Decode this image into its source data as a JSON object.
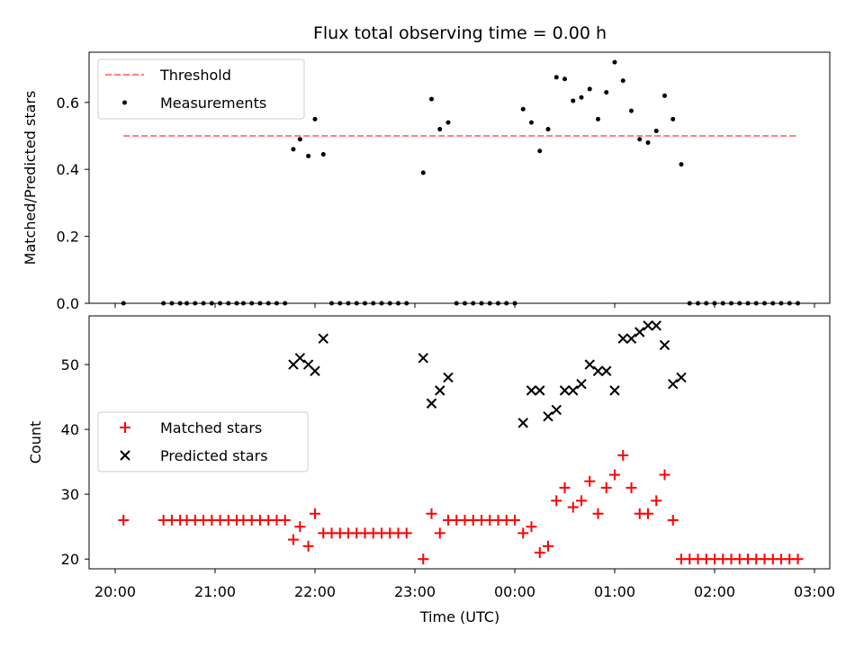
{
  "title": "Flux total observing time = 0.00 h",
  "colors": {
    "threshold": "#ff7f7f",
    "measurement": "#000000",
    "matched": "#ff0000",
    "predicted": "#000000"
  },
  "chart_data": [
    {
      "type": "scatter",
      "ylabel": "Matched/Predicted stars",
      "ylim": [
        0,
        0.75
      ],
      "y_ticks": [
        "0.0",
        "0.2",
        "0.4",
        "0.6"
      ],
      "legend": {
        "placement": "upper-left",
        "entries": [
          "Threshold",
          "Measurements"
        ]
      },
      "threshold": {
        "name": "Threshold",
        "value": 0.5,
        "x_start": "20:05",
        "x_end": "02:50"
      },
      "series": [
        {
          "name": "Measurements",
          "points": [
            [
              "20:05",
              0
            ],
            [
              "20:29",
              0
            ],
            [
              "20:34",
              0
            ],
            [
              "20:39",
              0
            ],
            [
              "20:43",
              0
            ],
            [
              "20:48",
              0
            ],
            [
              "20:53",
              0
            ],
            [
              "20:58",
              0
            ],
            [
              "21:03",
              0
            ],
            [
              "21:08",
              0
            ],
            [
              "21:13",
              0
            ],
            [
              "21:17",
              0
            ],
            [
              "21:22",
              0
            ],
            [
              "21:27",
              0
            ],
            [
              "21:32",
              0
            ],
            [
              "21:37",
              0
            ],
            [
              "21:42",
              0
            ],
            [
              "21:47",
              0.46
            ],
            [
              "21:51",
              0.49
            ],
            [
              "21:56",
              0.44
            ],
            [
              "22:00",
              0.55
            ],
            [
              "22:05",
              0.445
            ],
            [
              "22:10",
              0
            ],
            [
              "22:15",
              0
            ],
            [
              "22:20",
              0
            ],
            [
              "22:25",
              0
            ],
            [
              "22:30",
              0
            ],
            [
              "22:35",
              0
            ],
            [
              "22:40",
              0
            ],
            [
              "22:45",
              0
            ],
            [
              "22:50",
              0
            ],
            [
              "22:55",
              0
            ],
            [
              "23:05",
              0.39
            ],
            [
              "23:10",
              0.61
            ],
            [
              "23:15",
              0.52
            ],
            [
              "23:20",
              0.54
            ],
            [
              "23:25",
              0
            ],
            [
              "23:30",
              0
            ],
            [
              "23:35",
              0
            ],
            [
              "23:40",
              0
            ],
            [
              "23:45",
              0
            ],
            [
              "23:50",
              0
            ],
            [
              "23:55",
              0
            ],
            [
              "00:00",
              0
            ],
            [
              "00:05",
              0.58
            ],
            [
              "00:10",
              0.54
            ],
            [
              "00:15",
              0.455
            ],
            [
              "00:20",
              0.52
            ],
            [
              "00:25",
              0.675
            ],
            [
              "00:30",
              0.67
            ],
            [
              "00:35",
              0.605
            ],
            [
              "00:40",
              0.615
            ],
            [
              "00:45",
              0.64
            ],
            [
              "00:50",
              0.55
            ],
            [
              "00:55",
              0.63
            ],
            [
              "01:00",
              0.72
            ],
            [
              "01:05",
              0.665
            ],
            [
              "01:10",
              0.575
            ],
            [
              "01:15",
              0.49
            ],
            [
              "01:20",
              0.48
            ],
            [
              "01:25",
              0.515
            ],
            [
              "01:30",
              0.62
            ],
            [
              "01:35",
              0.55
            ],
            [
              "01:40",
              0.415
            ],
            [
              "01:45",
              0
            ],
            [
              "01:50",
              0
            ],
            [
              "01:55",
              0
            ],
            [
              "02:00",
              0
            ],
            [
              "02:05",
              0
            ],
            [
              "02:10",
              0
            ],
            [
              "02:15",
              0
            ],
            [
              "02:20",
              0
            ],
            [
              "02:25",
              0
            ],
            [
              "02:30",
              0
            ],
            [
              "02:35",
              0
            ],
            [
              "02:40",
              0
            ],
            [
              "02:45",
              0
            ],
            [
              "02:50",
              0
            ]
          ]
        }
      ]
    },
    {
      "type": "scatter",
      "ylabel": "Count",
      "xlabel": "Time (UTC)",
      "ylim": [
        18.5,
        57.5
      ],
      "y_ticks": [
        "20",
        "30",
        "40",
        "50"
      ],
      "x_ticks": [
        "20:00",
        "21:00",
        "22:00",
        "23:00",
        "00:00",
        "01:00",
        "02:00",
        "03:00"
      ],
      "legend": {
        "placement": "center-left",
        "entries": [
          "Matched stars",
          "Predicted stars"
        ]
      },
      "series": [
        {
          "name": "Matched stars",
          "marker": "plus",
          "points": [
            [
              "20:05",
              26
            ],
            [
              "20:29",
              26
            ],
            [
              "20:34",
              26
            ],
            [
              "20:39",
              26
            ],
            [
              "20:43",
              26
            ],
            [
              "20:48",
              26
            ],
            [
              "20:53",
              26
            ],
            [
              "20:58",
              26
            ],
            [
              "21:03",
              26
            ],
            [
              "21:08",
              26
            ],
            [
              "21:13",
              26
            ],
            [
              "21:17",
              26
            ],
            [
              "21:22",
              26
            ],
            [
              "21:27",
              26
            ],
            [
              "21:32",
              26
            ],
            [
              "21:37",
              26
            ],
            [
              "21:42",
              26
            ],
            [
              "21:47",
              23
            ],
            [
              "21:51",
              25
            ],
            [
              "21:56",
              22
            ],
            [
              "22:00",
              27
            ],
            [
              "22:05",
              24
            ],
            [
              "22:10",
              24
            ],
            [
              "22:15",
              24
            ],
            [
              "22:20",
              24
            ],
            [
              "22:25",
              24
            ],
            [
              "22:30",
              24
            ],
            [
              "22:35",
              24
            ],
            [
              "22:40",
              24
            ],
            [
              "22:45",
              24
            ],
            [
              "22:50",
              24
            ],
            [
              "22:55",
              24
            ],
            [
              "23:05",
              20
            ],
            [
              "23:10",
              27
            ],
            [
              "23:15",
              24
            ],
            [
              "23:20",
              26
            ],
            [
              "23:25",
              26
            ],
            [
              "23:30",
              26
            ],
            [
              "23:35",
              26
            ],
            [
              "23:40",
              26
            ],
            [
              "23:45",
              26
            ],
            [
              "23:50",
              26
            ],
            [
              "23:55",
              26
            ],
            [
              "00:00",
              26
            ],
            [
              "00:05",
              24
            ],
            [
              "00:10",
              25
            ],
            [
              "00:15",
              21
            ],
            [
              "00:20",
              22
            ],
            [
              "00:25",
              29
            ],
            [
              "00:30",
              31
            ],
            [
              "00:35",
              28
            ],
            [
              "00:40",
              29
            ],
            [
              "00:45",
              32
            ],
            [
              "00:50",
              27
            ],
            [
              "00:55",
              31
            ],
            [
              "01:00",
              33
            ],
            [
              "01:05",
              36
            ],
            [
              "01:10",
              31
            ],
            [
              "01:15",
              27
            ],
            [
              "01:20",
              27
            ],
            [
              "01:25",
              29
            ],
            [
              "01:30",
              33
            ],
            [
              "01:35",
              26
            ],
            [
              "01:40",
              20
            ],
            [
              "01:45",
              20
            ],
            [
              "01:50",
              20
            ],
            [
              "01:55",
              20
            ],
            [
              "02:00",
              20
            ],
            [
              "02:05",
              20
            ],
            [
              "02:10",
              20
            ],
            [
              "02:15",
              20
            ],
            [
              "02:20",
              20
            ],
            [
              "02:25",
              20
            ],
            [
              "02:30",
              20
            ],
            [
              "02:35",
              20
            ],
            [
              "02:40",
              20
            ],
            [
              "02:45",
              20
            ],
            [
              "02:50",
              20
            ]
          ]
        },
        {
          "name": "Predicted stars",
          "marker": "x",
          "points": [
            [
              "21:47",
              50
            ],
            [
              "21:51",
              51
            ],
            [
              "21:56",
              50
            ],
            [
              "22:00",
              49
            ],
            [
              "22:05",
              54
            ],
            [
              "23:05",
              51
            ],
            [
              "23:10",
              44
            ],
            [
              "23:15",
              46
            ],
            [
              "23:20",
              48
            ],
            [
              "00:05",
              41
            ],
            [
              "00:10",
              46
            ],
            [
              "00:15",
              46
            ],
            [
              "00:20",
              42
            ],
            [
              "00:25",
              43
            ],
            [
              "00:30",
              46
            ],
            [
              "00:35",
              46
            ],
            [
              "00:40",
              47
            ],
            [
              "00:45",
              50
            ],
            [
              "00:50",
              49
            ],
            [
              "00:55",
              49
            ],
            [
              "01:00",
              46
            ],
            [
              "01:05",
              54
            ],
            [
              "01:10",
              54
            ],
            [
              "01:15",
              55
            ],
            [
              "01:20",
              56
            ],
            [
              "01:25",
              56
            ],
            [
              "01:30",
              53
            ],
            [
              "01:35",
              47
            ],
            [
              "01:40",
              48
            ]
          ]
        }
      ]
    }
  ]
}
